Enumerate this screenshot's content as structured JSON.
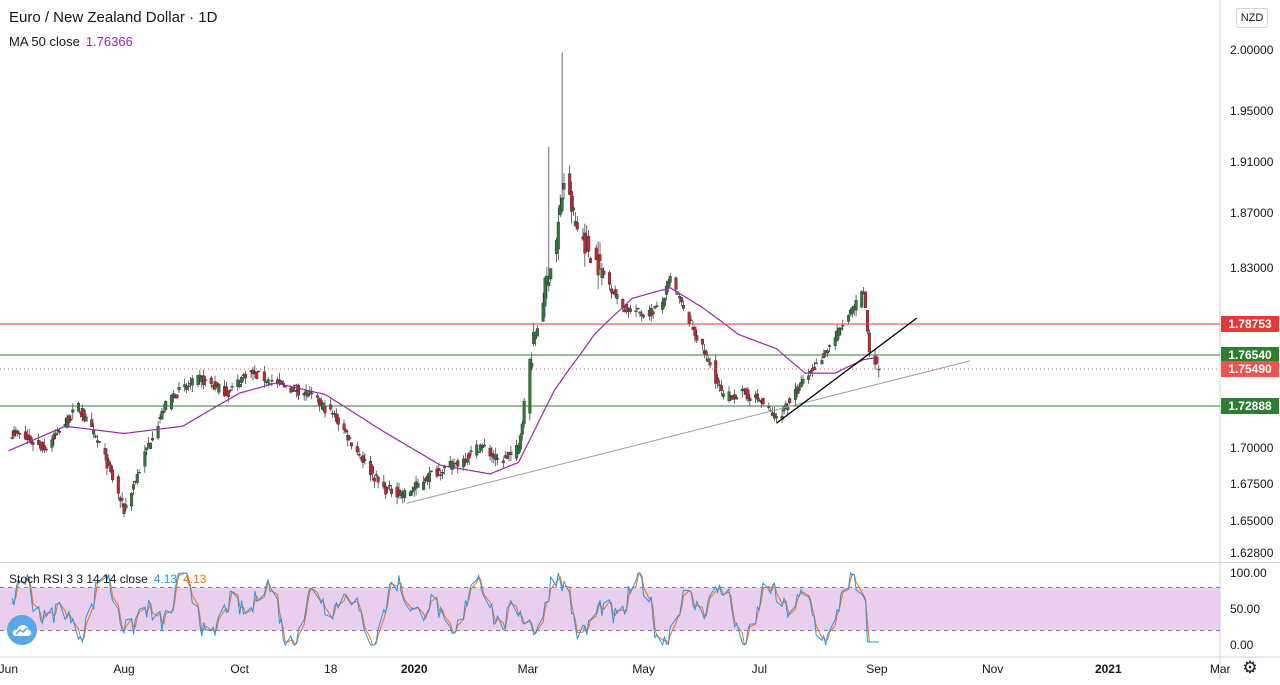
{
  "legend": {
    "title": "Euro / New Zealand Dollar · 1D",
    "ma_label": "MA 50 close",
    "ma_value": "1.76366",
    "osc_label": "Stoch RSI 3 3 14 14 close",
    "osc_k": "4.13",
    "osc_d": "4.13"
  },
  "currency_badge": "NZD",
  "icons": {
    "logo": "tradingview-cloud-icon",
    "settings": "gear-icon"
  },
  "colors": {
    "up": "#26a69a",
    "down": "#ef5350",
    "candle_body_up": "#2e7d32",
    "candle_body_down": "#c62828",
    "ma": "#9c27b0",
    "stoch_k": "#2196f3",
    "stoch_d": "#ff6d00",
    "resistance": "#e53935",
    "support": "#2e7d32",
    "band_fill": "#e1bee7"
  },
  "chart_data": {
    "type": "candlestick",
    "symbol": "EURNZD",
    "title": "Euro / New Zealand Dollar · 1D",
    "x_ticks": [
      "Jun",
      "Aug",
      "Oct",
      "18",
      "2020",
      "Mar",
      "May",
      "Jul",
      "Sep",
      "Nov",
      "2021",
      "Mar"
    ],
    "y_ticks": [
      "2.00000",
      "1.95000",
      "1.91000",
      "1.87000",
      "1.83000",
      "1.70000",
      "1.67500",
      "1.65000",
      "1.62800"
    ],
    "ylim": [
      1.622,
      2.033
    ],
    "price_anchors": [
      [
        "2019-06-01",
        1.712
      ],
      [
        "2019-06-20",
        1.7
      ],
      [
        "2019-07-08",
        1.728
      ],
      [
        "2019-07-20",
        1.7
      ],
      [
        "2019-08-01",
        1.657
      ],
      [
        "2019-08-15",
        1.706
      ],
      [
        "2019-08-25",
        1.735
      ],
      [
        "2019-09-10",
        1.748
      ],
      [
        "2019-09-25",
        1.738
      ],
      [
        "2019-10-05",
        1.753
      ],
      [
        "2019-10-20",
        1.745
      ],
      [
        "2019-11-05",
        1.738
      ],
      [
        "2019-11-20",
        1.722
      ],
      [
        "2019-12-01",
        1.7
      ],
      [
        "2019-12-15",
        1.672
      ],
      [
        "2019-12-28",
        1.668
      ],
      [
        "2020-01-10",
        1.682
      ],
      [
        "2020-01-25",
        1.69
      ],
      [
        "2020-02-05",
        1.702
      ],
      [
        "2020-02-15",
        1.69
      ],
      [
        "2020-02-25",
        1.7
      ],
      [
        "2020-03-02",
        1.76
      ],
      [
        "2020-03-10",
        1.815
      ],
      [
        "2020-03-16",
        1.85
      ],
      [
        "2020-03-20",
        1.895
      ],
      [
        "2020-03-27",
        1.858
      ],
      [
        "2020-04-08",
        1.83
      ],
      [
        "2020-04-20",
        1.8
      ],
      [
        "2020-05-01",
        1.795
      ],
      [
        "2020-05-10",
        1.8
      ],
      [
        "2020-05-15",
        1.822
      ],
      [
        "2020-05-25",
        1.79
      ],
      [
        "2020-06-05",
        1.758
      ],
      [
        "2020-06-12",
        1.735
      ],
      [
        "2020-06-22",
        1.738
      ],
      [
        "2020-07-01",
        1.733
      ],
      [
        "2020-07-10",
        1.72
      ],
      [
        "2020-07-20",
        1.738
      ],
      [
        "2020-08-01",
        1.76
      ],
      [
        "2020-08-10",
        1.778
      ],
      [
        "2020-08-20",
        1.8
      ],
      [
        "2020-08-25",
        1.812
      ],
      [
        "2020-08-28",
        1.768
      ],
      [
        "2020-09-02",
        1.755
      ]
    ],
    "ma50_anchors": [
      [
        "2019-06-01",
        1.698
      ],
      [
        "2019-07-01",
        1.715
      ],
      [
        "2019-08-01",
        1.71
      ],
      [
        "2019-09-01",
        1.715
      ],
      [
        "2019-10-01",
        1.738
      ],
      [
        "2019-10-20",
        1.745
      ],
      [
        "2019-11-15",
        1.737
      ],
      [
        "2019-12-15",
        1.712
      ],
      [
        "2020-01-15",
        1.688
      ],
      [
        "2020-02-10",
        1.682
      ],
      [
        "2020-02-25",
        1.69
      ],
      [
        "2020-03-15",
        1.74
      ],
      [
        "2020-04-05",
        1.78
      ],
      [
        "2020-04-25",
        1.807
      ],
      [
        "2020-05-15",
        1.815
      ],
      [
        "2020-06-01",
        1.8
      ],
      [
        "2020-06-20",
        1.78
      ],
      [
        "2020-07-10",
        1.77
      ],
      [
        "2020-07-25",
        1.752
      ],
      [
        "2020-08-10",
        1.752
      ],
      [
        "2020-08-25",
        1.762
      ],
      [
        "2020-09-02",
        1.7637
      ]
    ],
    "stoch_rsi": {
      "k_value": 4.13,
      "d_value": 4.13,
      "y_ticks": [
        "100.00",
        "50.00",
        "0.00"
      ],
      "upper_band": 80,
      "lower_band": 20
    },
    "horizontal_levels": [
      {
        "value": 1.78753,
        "label": "1.78753",
        "color": "#e53935"
      },
      {
        "value": 1.7654,
        "label": "1.76540",
        "color": "#2e7d32"
      },
      {
        "value": 1.72888,
        "label": "1.72888",
        "color": "#2e7d32"
      },
      {
        "value": 1.7549,
        "label": "1.75490",
        "color": "#ef5350",
        "dotted": true
      }
    ],
    "trendlines": [
      {
        "from": [
          "2019-12-28",
          1.662
        ],
        "to": [
          "2020-10-20",
          1.761
        ],
        "color": "#9e9e9e"
      },
      {
        "from": [
          "2020-07-10",
          1.717
        ],
        "to": [
          "2020-09-22",
          1.792
        ],
        "color": "#000000"
      }
    ]
  }
}
